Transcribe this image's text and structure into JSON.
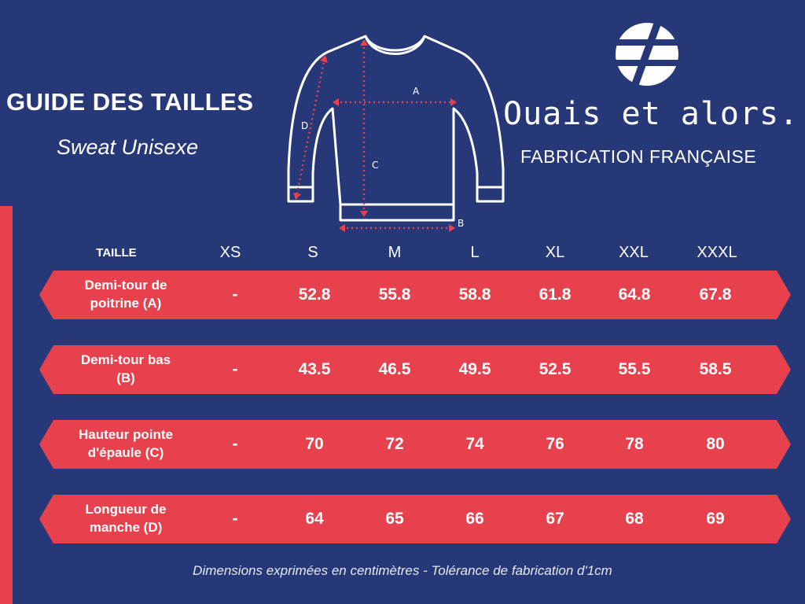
{
  "header": {
    "title": "GUIDE DES TAILLES",
    "subtitle": "Sweat Unisexe"
  },
  "brand": {
    "name": "Ouais et alors.",
    "tagline": "FABRICATION FRANÇAISE",
    "logo_icon": "slashed-circle-logo-icon"
  },
  "diagram": {
    "labels": {
      "a": "A",
      "b": "B",
      "c": "C",
      "d": "D"
    }
  },
  "table": {
    "label_header": "TAILLE",
    "sizes": [
      "XS",
      "S",
      "M",
      "L",
      "XL",
      "XXL",
      "XXXL"
    ],
    "rows": [
      {
        "label_line1": "Demi-tour de",
        "label_line2": "poitrine (A)",
        "values": [
          "-",
          "52.8",
          "55.8",
          "58.8",
          "61.8",
          "64.8",
          "67.8"
        ]
      },
      {
        "label_line1": "Demi-tour bas",
        "label_line2": "(B)",
        "values": [
          "-",
          "43.5",
          "46.5",
          "49.5",
          "52.5",
          "55.5",
          "58.5"
        ]
      },
      {
        "label_line1": "Hauteur pointe",
        "label_line2": "d'épaule (C)",
        "values": [
          "-",
          "70",
          "72",
          "74",
          "76",
          "78",
          "80"
        ]
      },
      {
        "label_line1": "Longueur de",
        "label_line2": "manche (D)",
        "values": [
          "-",
          "64",
          "65",
          "66",
          "67",
          "68",
          "69"
        ]
      }
    ]
  },
  "footnote": "Dimensions exprimées en centimètres - Tolérance de fabrication d'1cm",
  "colors": {
    "background": "#263877",
    "row_accent": "#e8414e",
    "text": "#ffffff",
    "measure_lines": "#e8414e"
  }
}
